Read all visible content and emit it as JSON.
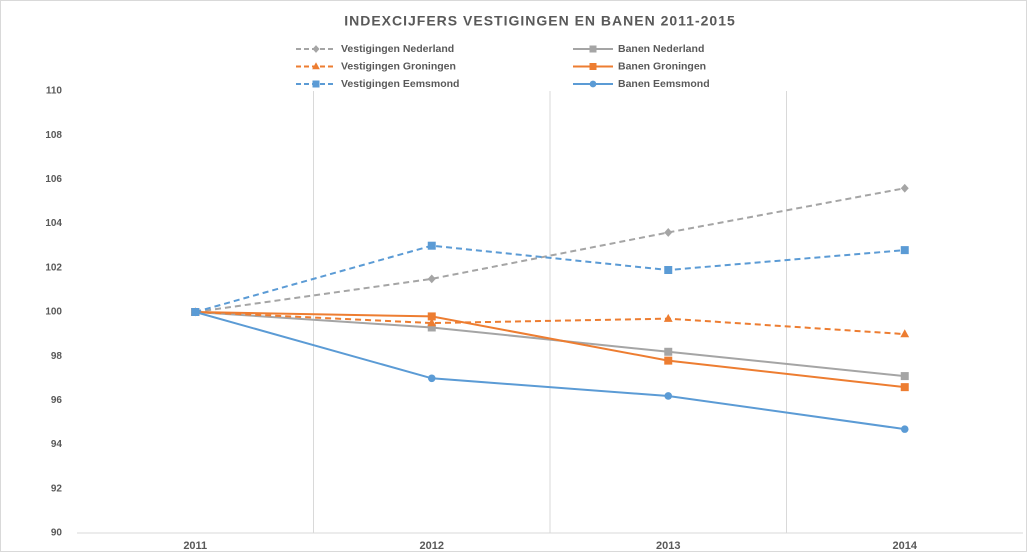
{
  "chart_data": {
    "type": "line",
    "title": "INDEXCIJFERS VESTIGINGEN EN BANEN 2011-2015",
    "categories": [
      "2011",
      "2012",
      "2013",
      "2014"
    ],
    "series": [
      {
        "name": "Vestigingen Nederland",
        "color": "#a5a5a5",
        "dashed": true,
        "marker": "diamond",
        "values": [
          100,
          101.5,
          103.6,
          105.6
        ]
      },
      {
        "name": "Banen Nederland",
        "color": "#a5a5a5",
        "dashed": false,
        "marker": "square",
        "values": [
          100,
          99.3,
          98.2,
          97.1
        ]
      },
      {
        "name": "Vestigingen Groningen",
        "color": "#ed7d31",
        "dashed": true,
        "marker": "triangle",
        "values": [
          100,
          99.5,
          99.7,
          99.0
        ]
      },
      {
        "name": "Banen Groningen",
        "color": "#ed7d31",
        "dashed": false,
        "marker": "square",
        "values": [
          100,
          99.8,
          97.8,
          96.6
        ]
      },
      {
        "name": "Vestigingen Eemsmond",
        "color": "#5b9bd5",
        "dashed": true,
        "marker": "square",
        "values": [
          100,
          103.0,
          101.9,
          102.8
        ]
      },
      {
        "name": "Banen Eemsmond",
        "color": "#5b9bd5",
        "dashed": false,
        "marker": "circle",
        "values": [
          100,
          97.0,
          96.2,
          94.7
        ]
      }
    ],
    "ylim": [
      90,
      110
    ],
    "yticks": [
      90,
      92,
      94,
      96,
      98,
      100,
      102,
      104,
      106,
      108,
      110
    ],
    "legend": "top"
  }
}
